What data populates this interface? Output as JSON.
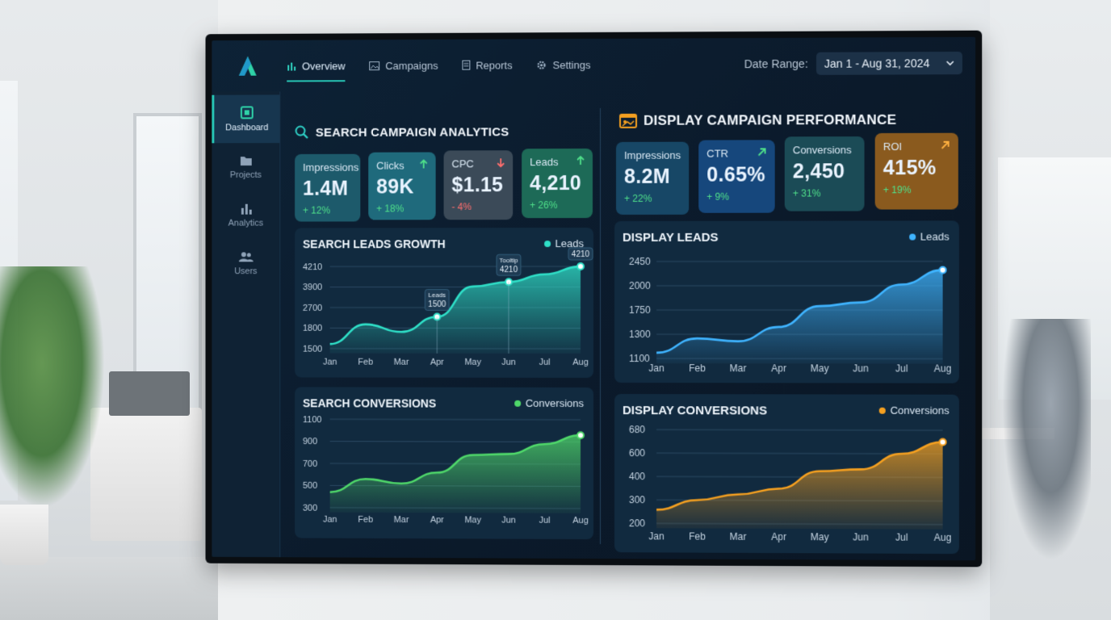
{
  "nav": {
    "items": [
      {
        "label": "Overview",
        "icon": "bar-chart-icon"
      },
      {
        "label": "Campaigns",
        "icon": "image-icon"
      },
      {
        "label": "Reports",
        "icon": "document-icon"
      },
      {
        "label": "Settings",
        "icon": "gear-icon"
      }
    ],
    "active": "Overview"
  },
  "date_range": {
    "label": "Date Range:",
    "value": "Jan 1 - Aug 31, 2024"
  },
  "sidebar": {
    "items": [
      {
        "label": "Dashboard",
        "icon": "dashboard-icon"
      },
      {
        "label": "Projects",
        "icon": "folder-icon"
      },
      {
        "label": "Analytics",
        "icon": "analytics-icon"
      },
      {
        "label": "Users",
        "icon": "users-icon"
      }
    ]
  },
  "search": {
    "title": "SEARCH CAMPAIGN ANALYTICS",
    "kpis": [
      {
        "label": "Impressions",
        "value": "1.4M",
        "delta": "+ 12%",
        "trend": "none",
        "color": "#1d5a6b"
      },
      {
        "label": "Clicks",
        "value": "89K",
        "delta": "+ 18%",
        "trend": "up",
        "color": "#1f6a7c"
      },
      {
        "label": "CPC",
        "value": "$1.15",
        "delta": "- 4%",
        "trend": "down",
        "color": "#3b4a58"
      },
      {
        "label": "Leads",
        "value": "4,210",
        "delta": "+ 26%",
        "trend": "up",
        "color": "#1d6a57"
      }
    ]
  },
  "display": {
    "title": "DISPLAY CAMPAIGN PERFORMANCE",
    "kpis": [
      {
        "label": "Impressions",
        "value": "8.2M",
        "delta": "+ 22%",
        "trend": "none",
        "color": "#174766"
      },
      {
        "label": "CTR",
        "value": "0.65%",
        "delta": "+ 9%",
        "trend": "up",
        "color": "#16477c"
      },
      {
        "label": "Conversions",
        "value": "2,450",
        "delta": "+ 31%",
        "trend": "none",
        "color": "#1b4b56"
      },
      {
        "label": "ROI",
        "value": "415%",
        "delta": "+ 19%",
        "trend": "up",
        "color": "#8a5a1e"
      }
    ]
  },
  "chart_data": [
    {
      "type": "area",
      "title": "SEARCH LEADS GROWTH",
      "categories": [
        "Jan",
        "Feb",
        "Mar",
        "Apr",
        "May",
        "Jun",
        "Jul",
        "Aug"
      ],
      "yticks": [
        "4210",
        "3900",
        "2700",
        "1800",
        "1500"
      ],
      "series": [
        {
          "name": "Leads",
          "values": [
            1650,
            2300,
            2050,
            2550,
            3550,
            3700,
            3950,
            4210
          ],
          "color": "#2fe0c8"
        }
      ],
      "annotations": [
        {
          "category": "Apr",
          "lines": [
            "Leads",
            "1500"
          ]
        },
        {
          "category": "Jun",
          "lines": [
            "Tooltip",
            "4210"
          ]
        },
        {
          "category": "Aug",
          "lines": [
            "4210"
          ]
        }
      ]
    },
    {
      "type": "area",
      "title": "SEARCH CONVERSIONS",
      "categories": [
        "Jan",
        "Feb",
        "Mar",
        "Apr",
        "May",
        "Jun",
        "Jul",
        "Aug"
      ],
      "yticks": [
        "1100",
        "900",
        "700",
        "500",
        "300"
      ],
      "series": [
        {
          "name": "Conversions",
          "values": [
            440,
            560,
            520,
            620,
            780,
            790,
            880,
            960
          ],
          "color": "#4fd86a"
        }
      ]
    },
    {
      "type": "area",
      "title": "DISPLAY LEADS",
      "categories": [
        "Jan",
        "Feb",
        "Mar",
        "Apr",
        "May",
        "Jun",
        "Jul",
        "Aug"
      ],
      "yticks": [
        "2450",
        "2000",
        "1750",
        "1300",
        "1100"
      ],
      "series": [
        {
          "name": "Leads",
          "values": [
            1180,
            1380,
            1340,
            1540,
            1830,
            1880,
            2130,
            2330
          ],
          "color": "#3fb4ff"
        }
      ]
    },
    {
      "type": "area",
      "title": "DISPLAY CONVERSIONS",
      "categories": [
        "Jan",
        "Feb",
        "Mar",
        "Apr",
        "May",
        "Jun",
        "Jul",
        "Aug"
      ],
      "yticks": [
        "680",
        "600",
        "400",
        "300",
        "200"
      ],
      "series": [
        {
          "name": "Conversions",
          "values": [
            270,
            320,
            350,
            380,
            470,
            480,
            560,
            620
          ],
          "color": "#f5a020"
        }
      ]
    }
  ]
}
